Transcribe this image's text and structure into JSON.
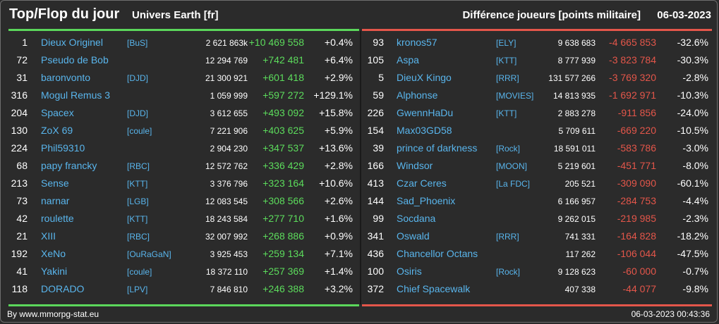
{
  "header": {
    "title": "Top/Flop du jour",
    "universe": "Univers Earth [fr]",
    "metric": "Différence joueurs [points militaire]",
    "date": "06-03-2023"
  },
  "colors": {
    "gain": "#5cdc5c",
    "loss": "#e4564a",
    "link": "#59b5ec",
    "background": "#2b2b2b"
  },
  "top": [
    {
      "rank": "1",
      "name": "Dieux Originel",
      "alliance": "[BuS]",
      "points": "2 621 863k",
      "delta": "+10 469 558",
      "pct": "+0.4%"
    },
    {
      "rank": "72",
      "name": "Pseudo de Bob",
      "alliance": "",
      "points": "12 294 769",
      "delta": "+742 481",
      "pct": "+6.4%"
    },
    {
      "rank": "31",
      "name": "baronvonto",
      "alliance": "[DJD]",
      "points": "21 300 921",
      "delta": "+601 418",
      "pct": "+2.9%"
    },
    {
      "rank": "316",
      "name": "Mogul Remus 3",
      "alliance": "",
      "points": "1 059 999",
      "delta": "+597 272",
      "pct": "+129.1%"
    },
    {
      "rank": "204",
      "name": "Spacex",
      "alliance": "[DJD]",
      "points": "3 612 655",
      "delta": "+493 092",
      "pct": "+15.8%"
    },
    {
      "rank": "130",
      "name": "ZoX 69",
      "alliance": "[coule]",
      "points": "7 221 906",
      "delta": "+403 625",
      "pct": "+5.9%"
    },
    {
      "rank": "224",
      "name": "Phil59310",
      "alliance": "",
      "points": "2 904 230",
      "delta": "+347 537",
      "pct": "+13.6%"
    },
    {
      "rank": "68",
      "name": "papy francky",
      "alliance": "[RBC]",
      "points": "12 572 762",
      "delta": "+336 429",
      "pct": "+2.8%"
    },
    {
      "rank": "213",
      "name": "Sense",
      "alliance": "[KTT]",
      "points": "3 376 796",
      "delta": "+323 164",
      "pct": "+10.6%"
    },
    {
      "rank": "73",
      "name": "narnar",
      "alliance": "[LGB]",
      "points": "12 083 545",
      "delta": "+308 566",
      "pct": "+2.6%"
    },
    {
      "rank": "42",
      "name": "roulette",
      "alliance": "[KTT]",
      "points": "18 243 584",
      "delta": "+277 710",
      "pct": "+1.6%"
    },
    {
      "rank": "21",
      "name": "XIII",
      "alliance": "[RBC]",
      "points": "32 007 992",
      "delta": "+268 886",
      "pct": "+0.9%"
    },
    {
      "rank": "192",
      "name": "XeNo",
      "alliance": "[OuRaGaN]",
      "points": "3 925 453",
      "delta": "+259 134",
      "pct": "+7.1%"
    },
    {
      "rank": "41",
      "name": "Yakini",
      "alliance": "[coule]",
      "points": "18 372 110",
      "delta": "+257 369",
      "pct": "+1.4%"
    },
    {
      "rank": "118",
      "name": "DORADO",
      "alliance": "[LPV]",
      "points": "7 846 810",
      "delta": "+246 388",
      "pct": "+3.2%"
    }
  ],
  "flop": [
    {
      "rank": "93",
      "name": "kronos57",
      "alliance": "[ELY]",
      "points": "9 638 683",
      "delta": "-4 665 853",
      "pct": "-32.6%"
    },
    {
      "rank": "105",
      "name": "Aspa",
      "alliance": "[KTT]",
      "points": "8 777 939",
      "delta": "-3 823 784",
      "pct": "-30.3%"
    },
    {
      "rank": "5",
      "name": "DieuX Kingo",
      "alliance": "[RRR]",
      "points": "131 577 266",
      "delta": "-3 769 320",
      "pct": "-2.8%"
    },
    {
      "rank": "59",
      "name": "Alphonse",
      "alliance": "[MOVIES]",
      "points": "14 813 935",
      "delta": "-1 692 971",
      "pct": "-10.3%"
    },
    {
      "rank": "226",
      "name": "GwennHaDu",
      "alliance": "[KTT]",
      "points": "2 883 278",
      "delta": "-911 856",
      "pct": "-24.0%"
    },
    {
      "rank": "154",
      "name": "Max03GD58",
      "alliance": "",
      "points": "5 709 611",
      "delta": "-669 220",
      "pct": "-10.5%"
    },
    {
      "rank": "39",
      "name": "prince of darkness",
      "alliance": "[Rock]",
      "points": "18 591 011",
      "delta": "-583 786",
      "pct": "-3.0%"
    },
    {
      "rank": "166",
      "name": "Windsor",
      "alliance": "[MOON]",
      "points": "5 219 601",
      "delta": "-451 771",
      "pct": "-8.0%"
    },
    {
      "rank": "413",
      "name": "Czar Ceres",
      "alliance": "[La FDC]",
      "points": "205 521",
      "delta": "-309 090",
      "pct": "-60.1%"
    },
    {
      "rank": "144",
      "name": "Sad_Phoenix",
      "alliance": "",
      "points": "6 166 957",
      "delta": "-284 753",
      "pct": "-4.4%"
    },
    {
      "rank": "99",
      "name": "Socdana",
      "alliance": "",
      "points": "9 262 015",
      "delta": "-219 985",
      "pct": "-2.3%"
    },
    {
      "rank": "341",
      "name": "Oswald",
      "alliance": "[RRR]",
      "points": "741 331",
      "delta": "-164 828",
      "pct": "-18.2%"
    },
    {
      "rank": "436",
      "name": "Chancellor Octans",
      "alliance": "",
      "points": "117 262",
      "delta": "-106 044",
      "pct": "-47.5%"
    },
    {
      "rank": "100",
      "name": "Osiris",
      "alliance": "[Rock]",
      "points": "9 128 623",
      "delta": "-60 000",
      "pct": "-0.7%"
    },
    {
      "rank": "372",
      "name": "Chief Spacewalk",
      "alliance": "",
      "points": "407 338",
      "delta": "-44 077",
      "pct": "-9.8%"
    }
  ],
  "footer": {
    "credit": "By www.mmorpg-stat.eu",
    "timestamp": "06-03-2023 00:43:36"
  }
}
